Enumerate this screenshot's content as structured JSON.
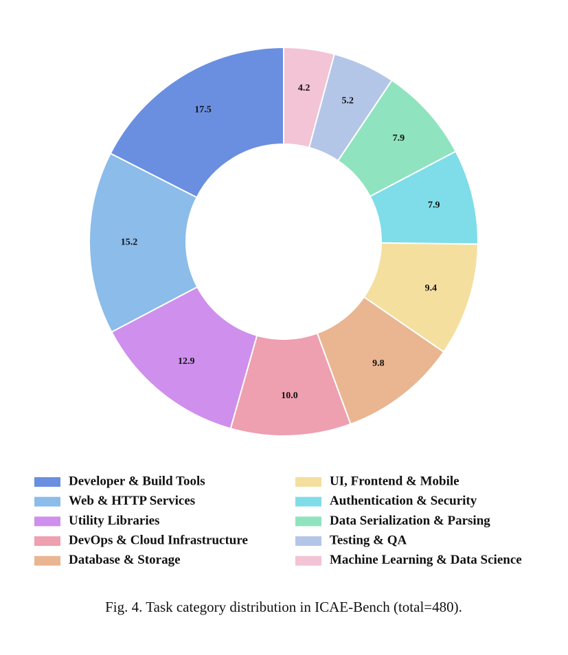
{
  "chart_data": {
    "type": "pie",
    "caption": "Fig. 4.  Task category distribution in ICAE-Bench (total=480).",
    "categories": [
      "Developer & Build Tools",
      "Web & HTTP Services",
      "Utility Libraries",
      "DevOps & Cloud Infrastructure",
      "Database & Storage",
      "UI, Frontend & Mobile",
      "Authentication & Security",
      "Data Serialization & Parsing",
      "Testing & QA",
      "Machine Learning & Data Science"
    ],
    "values": [
      17.5,
      15.2,
      12.9,
      10.0,
      9.8,
      9.4,
      7.9,
      7.9,
      5.2,
      4.2
    ],
    "value_labels": [
      "17.5",
      "15.2",
      "12.9",
      "10.0",
      "9.8",
      "9.4",
      "7.9",
      "7.9",
      "5.2",
      "4.2"
    ],
    "colors": [
      "#6a8fe0",
      "#8bbcea",
      "#cf8fed",
      "#ee9fb0",
      "#eab591",
      "#f5df9f",
      "#7fdde9",
      "#90e3bf",
      "#b4c6e8",
      "#f3c3d6"
    ]
  }
}
